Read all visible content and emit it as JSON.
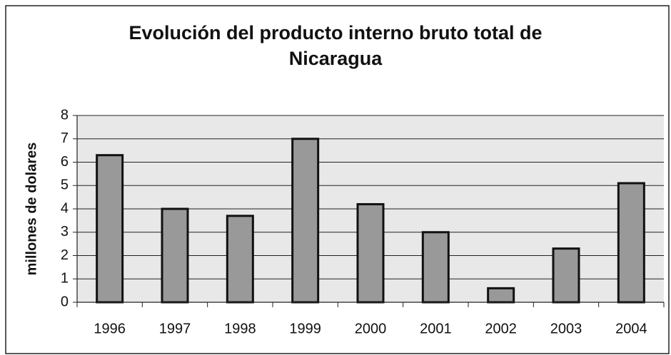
{
  "chart_data": {
    "type": "bar",
    "title": "Evolución del producto interno bruto total de Nicaragua",
    "y_label": "millones de dolares",
    "categories": [
      "1996",
      "1997",
      "1998",
      "1999",
      "2000",
      "2001",
      "2002",
      "2003",
      "2004"
    ],
    "values": [
      6.3,
      4.0,
      3.7,
      7.0,
      4.2,
      3.0,
      0.6,
      2.3,
      5.1
    ],
    "color": "#999999",
    "ylim": [
      0,
      8
    ],
    "yticks": [
      0,
      1,
      2,
      3,
      4,
      5,
      6,
      7,
      8
    ],
    "grid": true
  }
}
